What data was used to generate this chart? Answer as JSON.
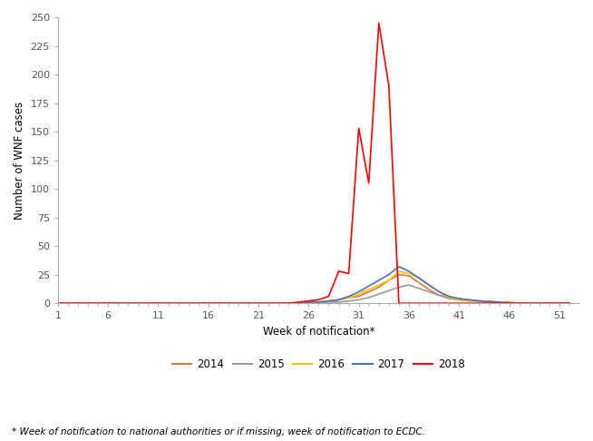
{
  "xlabel": "Week of notification*",
  "ylabel": "Number of WNF cases",
  "xlim": [
    1,
    53
  ],
  "ylim": [
    0,
    250
  ],
  "xticks": [
    1,
    6,
    11,
    16,
    21,
    26,
    31,
    36,
    41,
    46,
    51
  ],
  "yticks": [
    0,
    25,
    50,
    75,
    100,
    125,
    150,
    175,
    200,
    225,
    250
  ],
  "footnote": "* Week of notification to national authorities or if missing, week of notification to ECDC.",
  "series": {
    "2014": {
      "color": "#E87722",
      "weeks": [
        1,
        2,
        3,
        4,
        5,
        6,
        7,
        8,
        9,
        10,
        11,
        12,
        13,
        14,
        15,
        16,
        17,
        18,
        19,
        20,
        21,
        22,
        23,
        24,
        25,
        26,
        27,
        28,
        29,
        30,
        31,
        32,
        33,
        34,
        35,
        36,
        37,
        38,
        39,
        40,
        41,
        42,
        43,
        44,
        45,
        46,
        47,
        48,
        49,
        50,
        51,
        52
      ],
      "values": [
        0,
        0,
        0,
        0,
        0,
        0,
        0,
        0,
        0,
        0,
        0,
        0,
        0,
        0,
        0,
        0,
        0,
        0,
        0,
        0,
        0,
        0,
        0,
        0,
        0,
        1,
        1,
        2,
        3,
        5,
        6,
        10,
        14,
        20,
        25,
        24,
        18,
        12,
        7,
        5,
        4,
        3,
        2,
        2,
        1,
        1,
        0,
        0,
        0,
        0,
        0,
        0
      ]
    },
    "2015": {
      "color": "#999999",
      "weeks": [
        1,
        2,
        3,
        4,
        5,
        6,
        7,
        8,
        9,
        10,
        11,
        12,
        13,
        14,
        15,
        16,
        17,
        18,
        19,
        20,
        21,
        22,
        23,
        24,
        25,
        26,
        27,
        28,
        29,
        30,
        31,
        32,
        33,
        34,
        35,
        36,
        37,
        38,
        39,
        40,
        41,
        42,
        43,
        44,
        45,
        46,
        47,
        48,
        49,
        50,
        51,
        52
      ],
      "values": [
        0,
        0,
        0,
        0,
        0,
        0,
        0,
        0,
        0,
        0,
        0,
        0,
        0,
        0,
        0,
        0,
        0,
        0,
        0,
        0,
        0,
        0,
        0,
        0,
        0,
        0,
        0,
        1,
        1,
        2,
        3,
        5,
        8,
        11,
        14,
        16,
        13,
        10,
        7,
        4,
        3,
        2,
        2,
        1,
        1,
        0,
        0,
        0,
        0,
        0,
        0,
        0
      ]
    },
    "2016": {
      "color": "#FFC000",
      "weeks": [
        1,
        2,
        3,
        4,
        5,
        6,
        7,
        8,
        9,
        10,
        11,
        12,
        13,
        14,
        15,
        16,
        17,
        18,
        19,
        20,
        21,
        22,
        23,
        24,
        25,
        26,
        27,
        28,
        29,
        30,
        31,
        32,
        33,
        34,
        35,
        36,
        37,
        38,
        39,
        40,
        41,
        42,
        43,
        44,
        45,
        46,
        47,
        48,
        49,
        50,
        51,
        52
      ],
      "values": [
        0,
        0,
        0,
        0,
        0,
        0,
        0,
        0,
        0,
        0,
        0,
        0,
        0,
        0,
        0,
        0,
        0,
        0,
        0,
        0,
        0,
        0,
        0,
        0,
        0,
        0,
        1,
        2,
        3,
        5,
        8,
        12,
        16,
        20,
        28,
        26,
        22,
        16,
        10,
        5,
        3,
        2,
        2,
        1,
        1,
        0,
        0,
        0,
        0,
        0,
        0,
        0
      ]
    },
    "2017": {
      "color": "#4472C4",
      "weeks": [
        1,
        2,
        3,
        4,
        5,
        6,
        7,
        8,
        9,
        10,
        11,
        12,
        13,
        14,
        15,
        16,
        17,
        18,
        19,
        20,
        21,
        22,
        23,
        24,
        25,
        26,
        27,
        28,
        29,
        30,
        31,
        32,
        33,
        34,
        35,
        36,
        37,
        38,
        39,
        40,
        41,
        42,
        43,
        44,
        45,
        46,
        47,
        48,
        49,
        50,
        51,
        52
      ],
      "values": [
        0,
        0,
        0,
        0,
        0,
        0,
        0,
        0,
        0,
        0,
        0,
        0,
        0,
        0,
        0,
        0,
        0,
        0,
        0,
        0,
        0,
        0,
        0,
        0,
        0,
        1,
        1,
        2,
        3,
        6,
        10,
        15,
        20,
        25,
        32,
        28,
        22,
        16,
        10,
        6,
        4,
        3,
        2,
        1,
        1,
        0,
        0,
        0,
        0,
        0,
        0,
        0
      ]
    },
    "2018": {
      "color": "#FF0000",
      "weeks": [
        1,
        2,
        3,
        4,
        5,
        6,
        7,
        8,
        9,
        10,
        11,
        12,
        13,
        14,
        15,
        16,
        17,
        18,
        19,
        20,
        21,
        22,
        23,
        24,
        25,
        26,
        27,
        28,
        29,
        30,
        31,
        32,
        33,
        34,
        35,
        36,
        37,
        38,
        39,
        40,
        41,
        42,
        43,
        44,
        45,
        46,
        47,
        48,
        49,
        50,
        51,
        52
      ],
      "values": [
        0,
        0,
        0,
        0,
        0,
        0,
        0,
        0,
        0,
        0,
        0,
        0,
        0,
        0,
        0,
        0,
        0,
        0,
        0,
        0,
        0,
        0,
        0,
        0,
        1,
        2,
        3,
        6,
        28,
        26,
        153,
        105,
        245,
        190,
        0,
        0,
        0,
        0,
        0,
        0,
        0,
        0,
        0,
        0,
        0,
        0,
        0,
        0,
        0,
        0,
        0,
        0
      ]
    }
  },
  "legend_order": [
    "2014",
    "2015",
    "2016",
    "2017",
    "2018"
  ]
}
